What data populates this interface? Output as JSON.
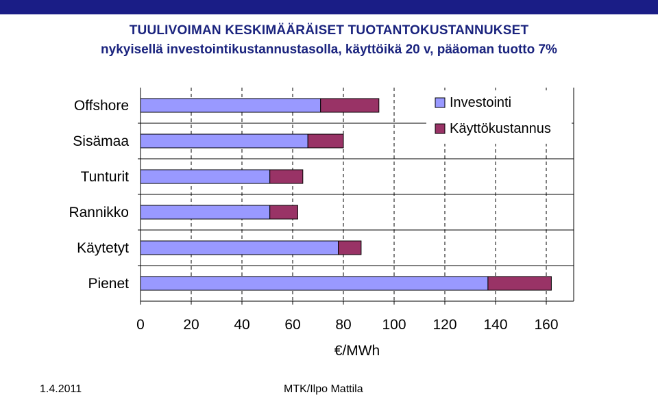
{
  "header": {
    "title": "TUULIVOIMAN KESKIMÄÄRÄISET TUOTANTOKUSTANNUKSET",
    "subtitle": "nykyisellä investointikustannustasolla, käyttöikä 20 v, pääoman tuotto 7%"
  },
  "footer": {
    "date": "1.4.2011",
    "author": "MTK/Ilpo Mattila"
  },
  "colors": {
    "topbar": "#1a1d86",
    "title": "#1a237e",
    "investointi": "#9999ff",
    "kayttokustannus": "#993366"
  },
  "chart_data": {
    "type": "bar",
    "orientation": "horizontal",
    "stacked": true,
    "categories": [
      "Offshore",
      "Sisämaa",
      "Tunturit",
      "Rannikko",
      "Käytetyt",
      "Pienet"
    ],
    "series": [
      {
        "name": "Investointi",
        "values": [
          71,
          66,
          51,
          51,
          78,
          137
        ]
      },
      {
        "name": "Käyttökustannus",
        "values": [
          23,
          14,
          13,
          11,
          9,
          25
        ]
      }
    ],
    "xlabel": "€/MWh",
    "ylabel": "",
    "xlim": [
      0,
      170
    ],
    "xticks": [
      "0",
      "20",
      "40",
      "60",
      "80",
      "100",
      "120",
      "140",
      "160"
    ],
    "grid": true,
    "legend_position": "top-right"
  }
}
